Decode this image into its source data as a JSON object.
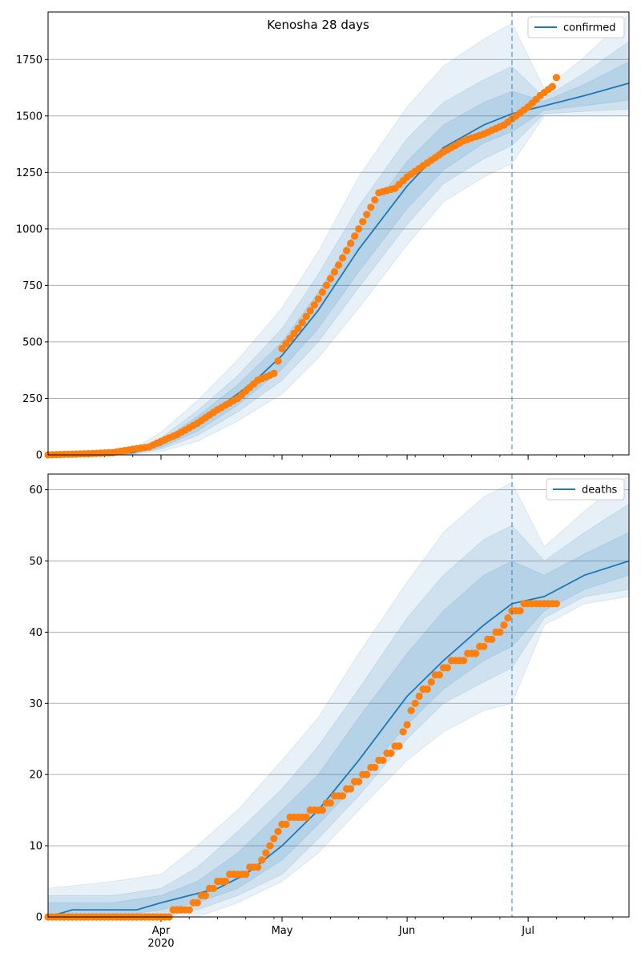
{
  "title": "Kenosha 28 days",
  "x_axis": {
    "major_ticks": [
      "Apr\n2020",
      "May",
      "Jun",
      "Jul"
    ],
    "major_tick_dates": [
      "2020-04-01",
      "2020-05-01",
      "2020-06-01",
      "2020-07-01"
    ],
    "xlim": [
      "2020-03-04",
      "2020-07-26"
    ]
  },
  "forecast_start": "2020-06-27",
  "colors": {
    "model_line": "#1f77b4",
    "observed_points": "#ff7f0e",
    "band": "#1f77b4",
    "grid": "#b0b0b0",
    "forecast_line": "#1f77b4"
  },
  "chart_data": [
    {
      "type": "line",
      "panel": "top",
      "title": "Kenosha 28 days",
      "legend": [
        "confirmed"
      ],
      "legend_position": "top-right",
      "grid": "y",
      "ylim": [
        0,
        1960
      ],
      "yticks": [
        0,
        250,
        500,
        750,
        1000,
        1250,
        1500,
        1750
      ],
      "model": {
        "name": "confirmed",
        "x": [
          "2020-03-04",
          "2020-03-15",
          "2020-03-25",
          "2020-04-01",
          "2020-04-10",
          "2020-04-20",
          "2020-04-25",
          "2020-05-01",
          "2020-05-10",
          "2020-05-20",
          "2020-06-01",
          "2020-06-10",
          "2020-06-20",
          "2020-06-27",
          "2020-07-05",
          "2020-07-15",
          "2020-07-26"
        ],
        "y": [
          0,
          2,
          10,
          45,
          140,
          270,
          340,
          440,
          640,
          910,
          1190,
          1360,
          1460,
          1510,
          1545,
          1590,
          1645
        ]
      },
      "bands": [
        {
          "x": [
            "2020-03-04",
            "2020-03-25",
            "2020-04-01",
            "2020-04-10",
            "2020-04-20",
            "2020-05-01",
            "2020-05-10",
            "2020-05-20",
            "2020-06-01",
            "2020-06-10",
            "2020-06-20",
            "2020-06-27",
            "2020-07-05",
            "2020-07-15",
            "2020-07-26"
          ],
          "lower": [
            0,
            2,
            15,
            60,
            150,
            270,
            430,
            650,
            930,
            1120,
            1230,
            1290,
            1500,
            1500,
            1500
          ],
          "upper": [
            0,
            25,
            100,
            240,
            420,
            650,
            900,
            1230,
            1540,
            1720,
            1840,
            1910,
            1620,
            1760,
            1950
          ]
        },
        {
          "x": [
            "2020-03-04",
            "2020-03-25",
            "2020-04-01",
            "2020-04-10",
            "2020-04-20",
            "2020-05-01",
            "2020-05-10",
            "2020-05-20",
            "2020-06-01",
            "2020-06-10",
            "2020-06-20",
            "2020-06-27",
            "2020-07-05",
            "2020-07-15",
            "2020-07-26"
          ],
          "lower": [
            0,
            4,
            25,
            85,
            190,
            330,
            500,
            740,
            1020,
            1200,
            1310,
            1370,
            1510,
            1520,
            1530
          ],
          "upper": [
            0,
            18,
            75,
            195,
            350,
            560,
            800,
            1100,
            1400,
            1560,
            1660,
            1720,
            1580,
            1690,
            1830
          ]
        },
        {
          "x": [
            "2020-03-04",
            "2020-03-25",
            "2020-04-01",
            "2020-04-10",
            "2020-04-20",
            "2020-05-01",
            "2020-05-10",
            "2020-05-20",
            "2020-06-01",
            "2020-06-10",
            "2020-06-20",
            "2020-06-27",
            "2020-07-05",
            "2020-07-15",
            "2020-07-26"
          ],
          "lower": [
            0,
            6,
            33,
            105,
            220,
            380,
            560,
            810,
            1090,
            1260,
            1380,
            1430,
            1525,
            1545,
            1570
          ],
          "upper": [
            0,
            14,
            60,
            170,
            310,
            500,
            720,
            1010,
            1300,
            1460,
            1560,
            1610,
            1565,
            1640,
            1740
          ]
        }
      ],
      "observed": {
        "x": [
          "2020-03-04",
          "2020-03-14",
          "2020-03-20",
          "2020-03-25",
          "2020-03-29",
          "2020-04-01",
          "2020-04-05",
          "2020-04-10",
          "2020-04-15",
          "2020-04-20",
          "2020-04-25",
          "2020-04-29",
          "2020-05-01",
          "2020-05-05",
          "2020-05-10",
          "2020-05-15",
          "2020-05-20",
          "2020-05-25",
          "2020-05-29",
          "2020-06-01",
          "2020-06-05",
          "2020-06-10",
          "2020-06-15",
          "2020-06-20",
          "2020-06-25",
          "2020-06-28",
          "2020-07-01",
          "2020-07-04",
          "2020-07-07",
          "2020-07-08"
        ],
        "y": [
          0,
          5,
          10,
          25,
          35,
          60,
          90,
          140,
          200,
          250,
          330,
          360,
          470,
          560,
          690,
          840,
          1000,
          1160,
          1180,
          1230,
          1280,
          1340,
          1390,
          1420,
          1460,
          1500,
          1540,
          1590,
          1630,
          1670
        ]
      }
    },
    {
      "type": "line",
      "panel": "bottom",
      "legend": [
        "deaths"
      ],
      "legend_position": "top-right",
      "grid": "y",
      "ylim": [
        0,
        62.2
      ],
      "yticks": [
        0,
        10,
        20,
        30,
        40,
        50,
        60
      ],
      "model": {
        "name": "deaths",
        "x": [
          "2020-03-04",
          "2020-03-10",
          "2020-03-26",
          "2020-04-01",
          "2020-04-08",
          "2020-04-15",
          "2020-04-22",
          "2020-05-01",
          "2020-05-10",
          "2020-05-20",
          "2020-06-01",
          "2020-06-10",
          "2020-06-20",
          "2020-06-27",
          "2020-07-05",
          "2020-07-15",
          "2020-07-26"
        ],
        "y": [
          0,
          1,
          1,
          2,
          3,
          4,
          6,
          10,
          15,
          22,
          31,
          36,
          41,
          44,
          45,
          48,
          50
        ]
      },
      "bands": [
        {
          "x": [
            "2020-03-04",
            "2020-03-20",
            "2020-04-01",
            "2020-04-10",
            "2020-04-20",
            "2020-05-01",
            "2020-05-10",
            "2020-05-20",
            "2020-06-01",
            "2020-06-10",
            "2020-06-20",
            "2020-06-27",
            "2020-07-05",
            "2020-07-15",
            "2020-07-26"
          ],
          "lower": [
            0,
            0,
            0,
            0,
            2,
            5,
            9,
            15,
            22,
            26,
            29,
            30,
            41,
            44,
            45
          ],
          "upper": [
            4,
            5,
            6,
            10,
            15,
            22,
            28,
            37,
            47,
            54,
            59,
            61,
            52,
            57,
            62
          ]
        },
        {
          "x": [
            "2020-03-04",
            "2020-03-20",
            "2020-04-01",
            "2020-04-10",
            "2020-04-20",
            "2020-05-01",
            "2020-05-10",
            "2020-05-20",
            "2020-06-01",
            "2020-06-10",
            "2020-06-20",
            "2020-06-27",
            "2020-07-05",
            "2020-07-15",
            "2020-07-26"
          ],
          "lower": [
            0,
            0,
            0,
            1,
            3,
            6,
            11,
            17,
            25,
            30,
            33,
            35,
            42,
            45,
            46
          ],
          "upper": [
            3,
            3,
            4,
            7,
            12,
            18,
            24,
            32,
            42,
            48,
            53,
            55,
            50,
            54,
            58
          ]
        },
        {
          "x": [
            "2020-03-04",
            "2020-03-20",
            "2020-04-01",
            "2020-04-10",
            "2020-04-20",
            "2020-05-01",
            "2020-05-10",
            "2020-05-20",
            "2020-06-01",
            "2020-06-10",
            "2020-06-20",
            "2020-06-27",
            "2020-07-05",
            "2020-07-15",
            "2020-07-26"
          ],
          "lower": [
            0,
            0,
            1,
            2,
            4,
            8,
            13,
            19,
            27,
            32,
            36,
            38,
            43,
            46,
            48
          ],
          "upper": [
            2,
            2,
            3,
            5,
            9,
            15,
            20,
            28,
            37,
            43,
            48,
            50,
            48,
            51,
            54
          ]
        }
      ],
      "observed": {
        "x": [
          "2020-03-04",
          "2020-03-20",
          "2020-04-03",
          "2020-04-04",
          "2020-04-08",
          "2020-04-12",
          "2020-04-15",
          "2020-04-20",
          "2020-04-25",
          "2020-04-29",
          "2020-05-01",
          "2020-05-05",
          "2020-05-10",
          "2020-05-15",
          "2020-05-20",
          "2020-05-25",
          "2020-05-30",
          "2020-06-03",
          "2020-06-08",
          "2020-06-13",
          "2020-06-18",
          "2020-06-22",
          "2020-06-25",
          "2020-06-27",
          "2020-07-02",
          "2020-07-08"
        ],
        "y": [
          0,
          0,
          0,
          1,
          1,
          3,
          5,
          6,
          7,
          11,
          13,
          14,
          15,
          17,
          19,
          22,
          24,
          30,
          34,
          36,
          37,
          39,
          41,
          43,
          44,
          44
        ]
      }
    }
  ]
}
